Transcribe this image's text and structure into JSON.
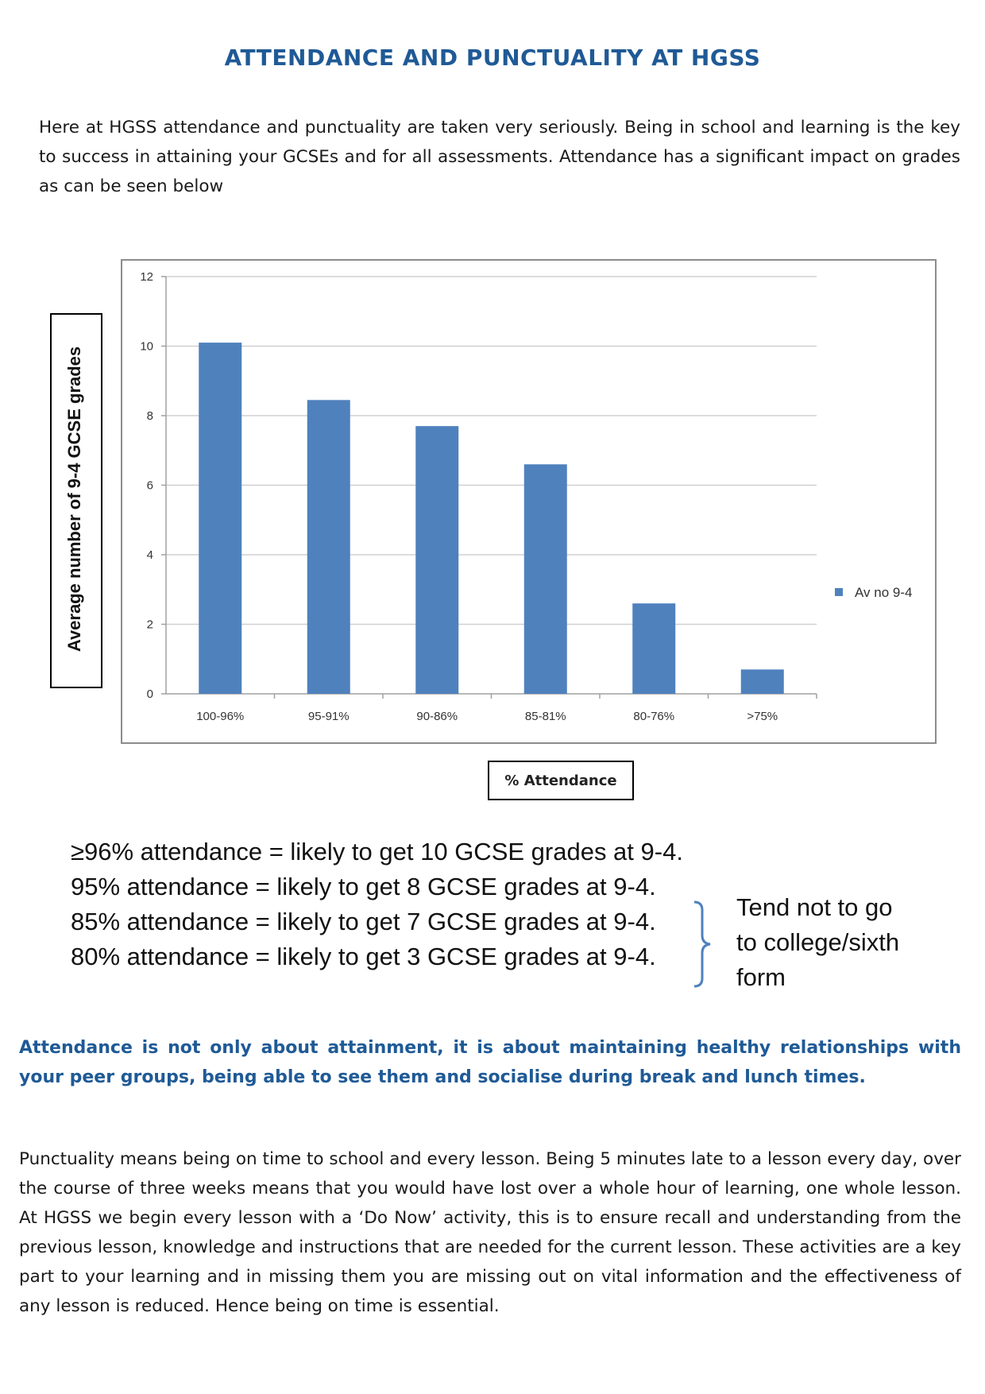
{
  "page": {
    "title": "ATTENDANCE AND PUNCTUALITY AT HGSS",
    "intro": "Here at HGSS attendance and punctuality are taken very seriously. Being in school and learning is the key to success in attaining your GCSEs and for all assessments. Attendance has a significant impact on grades as can be seen below",
    "facts": [
      "≥96% attendance = likely to get 10 GCSE grades at 9-4.",
      "95% attendance = likely to get 8 GCSE grades at 9-4.",
      "85% attendance = likely to get 7 GCSE grades at 9-4.",
      "80% attendance = likely to get 3 GCSE grades at 9-4."
    ],
    "brace_note": [
      "Tend not to go",
      "to college/sixth",
      "form"
    ],
    "highlight": "Attendance is not only about attainment, it is about maintaining healthy relationships with your peer groups, being able to see them and socialise during break and lunch times.",
    "punctuality": "Punctuality means being on time to school and every lesson. Being 5 minutes late to a lesson every day, over the course of three weeks means that you would have lost over a whole hour of learning, one whole lesson. At HGSS we begin every lesson with a ‘Do Now’ activity, this is to ensure recall and understanding from the previous lesson, knowledge and instructions that are needed for the current lesson. These activities are a key part to your learning and in missing them you are missing out on vital information and the effectiveness of any lesson is reduced.  Hence being on time is essential."
  },
  "chart_data": {
    "type": "bar",
    "title": "",
    "categories": [
      "100-96%",
      "95-91%",
      "90-86%",
      "85-81%",
      "80-76%",
      ">75%"
    ],
    "series": [
      {
        "name": "Av no 9-4",
        "values": [
          10.1,
          8.45,
          7.7,
          6.6,
          2.6,
          0.7
        ]
      }
    ],
    "xlabel": "% Attendance",
    "ylabel": "Average number of 9-4 GCSE grades",
    "ylim": [
      0,
      12
    ],
    "yticks": [
      "0",
      "2",
      "4",
      "6",
      "8",
      "10",
      "12"
    ],
    "grid": true,
    "legend_position": "right",
    "colors": {
      "bar": "#4f81bd",
      "grid": "#d0d0d0",
      "axis": "#a0a0a0",
      "frame": "#8c8c8c",
      "title": "#1f5a96"
    }
  }
}
